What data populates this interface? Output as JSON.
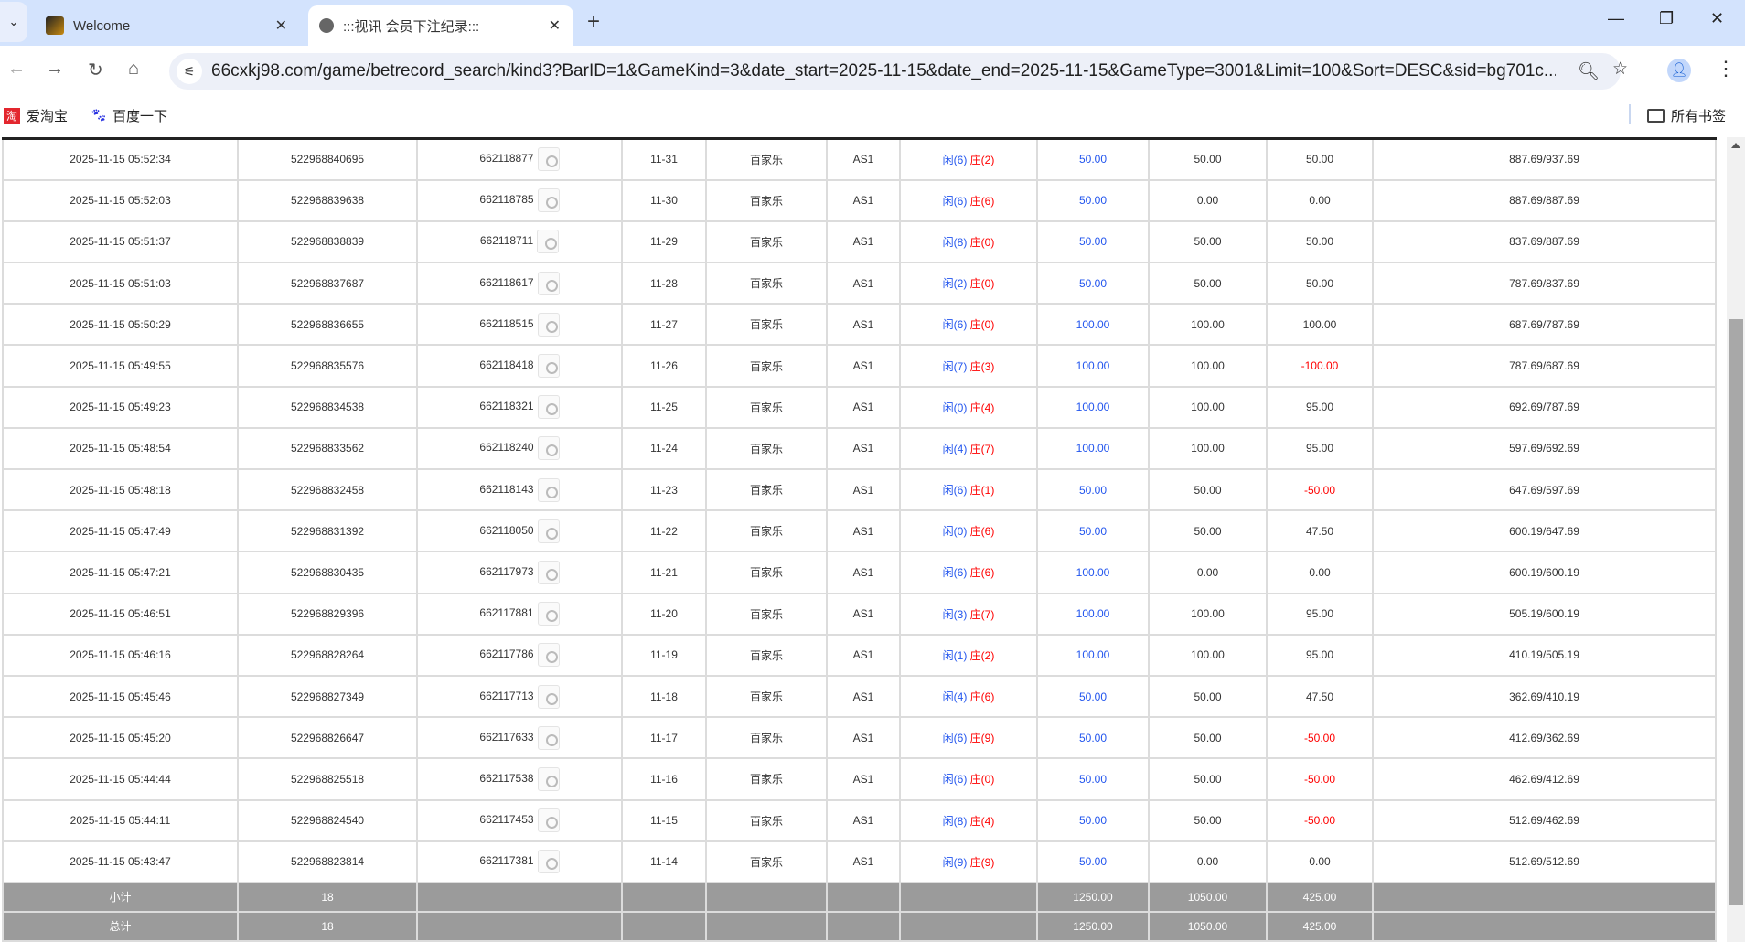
{
  "browser": {
    "tabs": [
      {
        "title": "Welcome",
        "active": false
      },
      {
        "title": ":::视讯 会员下注纪录:::",
        "active": true
      }
    ],
    "url": "66cxkj98.com/game/betrecord_search/kind3?BarID=1&GameKind=3&date_start=2025-11-15&date_end=2025-11-15&GameType=3001&Limit=100&Sort=DESC&sid=bg701c...",
    "bookmarks": [
      "爱淘宝",
      "百度一下"
    ],
    "all_bookmarks": "所有书签"
  },
  "colors": {
    "bet_blue": "#2255ee",
    "loss_red": "#ff0000",
    "summary_gray": "#9b9b9b"
  },
  "rows": [
    {
      "time": "2025-11-15 05:52:34",
      "bet_id": "522968840695",
      "round": "662118877",
      "table_no": "11-31",
      "game": "百家乐",
      "room": "AS1",
      "player": "闲(6)",
      "banker": "庄(2)",
      "bet": "50.00",
      "valid": "50.00",
      "win": "50.00",
      "balance": "887.69/937.69"
    },
    {
      "time": "2025-11-15 05:52:03",
      "bet_id": "522968839638",
      "round": "662118785",
      "table_no": "11-30",
      "game": "百家乐",
      "room": "AS1",
      "player": "闲(6)",
      "banker": "庄(6)",
      "bet": "50.00",
      "valid": "0.00",
      "win": "0.00",
      "balance": "887.69/887.69"
    },
    {
      "time": "2025-11-15 05:51:37",
      "bet_id": "522968838839",
      "round": "662118711",
      "table_no": "11-29",
      "game": "百家乐",
      "room": "AS1",
      "player": "闲(8)",
      "banker": "庄(0)",
      "bet": "50.00",
      "valid": "50.00",
      "win": "50.00",
      "balance": "837.69/887.69"
    },
    {
      "time": "2025-11-15 05:51:03",
      "bet_id": "522968837687",
      "round": "662118617",
      "table_no": "11-28",
      "game": "百家乐",
      "room": "AS1",
      "player": "闲(2)",
      "banker": "庄(0)",
      "bet": "50.00",
      "valid": "50.00",
      "win": "50.00",
      "balance": "787.69/837.69"
    },
    {
      "time": "2025-11-15 05:50:29",
      "bet_id": "522968836655",
      "round": "662118515",
      "table_no": "11-27",
      "game": "百家乐",
      "room": "AS1",
      "player": "闲(6)",
      "banker": "庄(0)",
      "bet": "100.00",
      "valid": "100.00",
      "win": "100.00",
      "balance": "687.69/787.69"
    },
    {
      "time": "2025-11-15 05:49:55",
      "bet_id": "522968835576",
      "round": "662118418",
      "table_no": "11-26",
      "game": "百家乐",
      "room": "AS1",
      "player": "闲(7)",
      "banker": "庄(3)",
      "bet": "100.00",
      "valid": "100.00",
      "win": "-100.00",
      "balance": "787.69/687.69"
    },
    {
      "time": "2025-11-15 05:49:23",
      "bet_id": "522968834538",
      "round": "662118321",
      "table_no": "11-25",
      "game": "百家乐",
      "room": "AS1",
      "player": "闲(0)",
      "banker": "庄(4)",
      "bet": "100.00",
      "valid": "100.00",
      "win": "95.00",
      "balance": "692.69/787.69"
    },
    {
      "time": "2025-11-15 05:48:54",
      "bet_id": "522968833562",
      "round": "662118240",
      "table_no": "11-24",
      "game": "百家乐",
      "room": "AS1",
      "player": "闲(4)",
      "banker": "庄(7)",
      "bet": "100.00",
      "valid": "100.00",
      "win": "95.00",
      "balance": "597.69/692.69"
    },
    {
      "time": "2025-11-15 05:48:18",
      "bet_id": "522968832458",
      "round": "662118143",
      "table_no": "11-23",
      "game": "百家乐",
      "room": "AS1",
      "player": "闲(6)",
      "banker": "庄(1)",
      "bet": "50.00",
      "valid": "50.00",
      "win": "-50.00",
      "balance": "647.69/597.69"
    },
    {
      "time": "2025-11-15 05:47:49",
      "bet_id": "522968831392",
      "round": "662118050",
      "table_no": "11-22",
      "game": "百家乐",
      "room": "AS1",
      "player": "闲(0)",
      "banker": "庄(6)",
      "bet": "50.00",
      "valid": "50.00",
      "win": "47.50",
      "balance": "600.19/647.69"
    },
    {
      "time": "2025-11-15 05:47:21",
      "bet_id": "522968830435",
      "round": "662117973",
      "table_no": "11-21",
      "game": "百家乐",
      "room": "AS1",
      "player": "闲(6)",
      "banker": "庄(6)",
      "bet": "100.00",
      "valid": "0.00",
      "win": "0.00",
      "balance": "600.19/600.19"
    },
    {
      "time": "2025-11-15 05:46:51",
      "bet_id": "522968829396",
      "round": "662117881",
      "table_no": "11-20",
      "game": "百家乐",
      "room": "AS1",
      "player": "闲(3)",
      "banker": "庄(7)",
      "bet": "100.00",
      "valid": "100.00",
      "win": "95.00",
      "balance": "505.19/600.19"
    },
    {
      "time": "2025-11-15 05:46:16",
      "bet_id": "522968828264",
      "round": "662117786",
      "table_no": "11-19",
      "game": "百家乐",
      "room": "AS1",
      "player": "闲(1)",
      "banker": "庄(2)",
      "bet": "100.00",
      "valid": "100.00",
      "win": "95.00",
      "balance": "410.19/505.19"
    },
    {
      "time": "2025-11-15 05:45:46",
      "bet_id": "522968827349",
      "round": "662117713",
      "table_no": "11-18",
      "game": "百家乐",
      "room": "AS1",
      "player": "闲(4)",
      "banker": "庄(6)",
      "bet": "50.00",
      "valid": "50.00",
      "win": "47.50",
      "balance": "362.69/410.19"
    },
    {
      "time": "2025-11-15 05:45:20",
      "bet_id": "522968826647",
      "round": "662117633",
      "table_no": "11-17",
      "game": "百家乐",
      "room": "AS1",
      "player": "闲(6)",
      "banker": "庄(9)",
      "bet": "50.00",
      "valid": "50.00",
      "win": "-50.00",
      "balance": "412.69/362.69"
    },
    {
      "time": "2025-11-15 05:44:44",
      "bet_id": "522968825518",
      "round": "662117538",
      "table_no": "11-16",
      "game": "百家乐",
      "room": "AS1",
      "player": "闲(6)",
      "banker": "庄(0)",
      "bet": "50.00",
      "valid": "50.00",
      "win": "-50.00",
      "balance": "462.69/412.69"
    },
    {
      "time": "2025-11-15 05:44:11",
      "bet_id": "522968824540",
      "round": "662117453",
      "table_no": "11-15",
      "game": "百家乐",
      "room": "AS1",
      "player": "闲(8)",
      "banker": "庄(4)",
      "bet": "50.00",
      "valid": "50.00",
      "win": "-50.00",
      "balance": "512.69/462.69"
    },
    {
      "time": "2025-11-15 05:43:47",
      "bet_id": "522968823814",
      "round": "662117381",
      "table_no": "11-14",
      "game": "百家乐",
      "room": "AS1",
      "player": "闲(9)",
      "banker": "庄(9)",
      "bet": "50.00",
      "valid": "0.00",
      "win": "0.00",
      "balance": "512.69/512.69"
    }
  ],
  "summary": [
    {
      "label": "小计",
      "count": "18",
      "bet": "1250.00",
      "valid": "1050.00",
      "win": "425.00"
    },
    {
      "label": "总计",
      "count": "18",
      "bet": "1250.00",
      "valid": "1050.00",
      "win": "425.00"
    }
  ]
}
